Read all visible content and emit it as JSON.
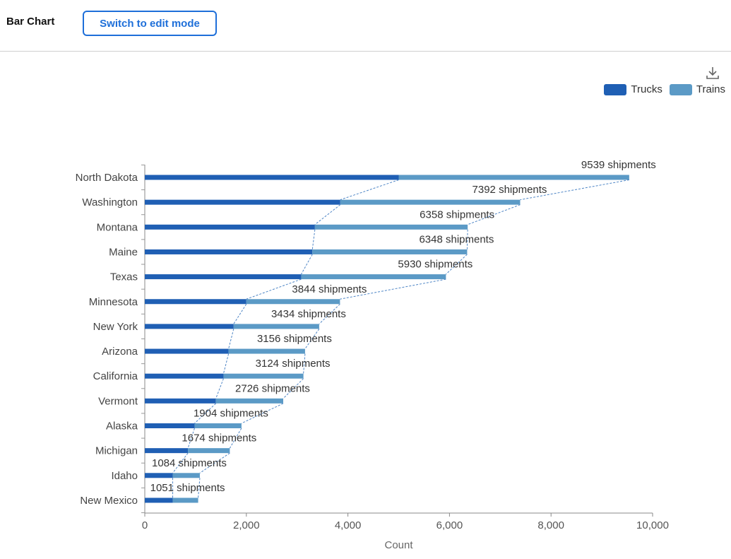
{
  "header": {
    "title": "Bar Chart",
    "edit_button_label": "Switch to edit mode"
  },
  "toolbar": {
    "download_icon": "download-icon"
  },
  "colors": {
    "trucks": "#1f5fb4",
    "trains": "#5b9ac6",
    "connector": "#4f86c6",
    "accent": "#1e6fd9"
  },
  "chart_data": {
    "type": "bar",
    "orientation": "horizontal",
    "stacked": true,
    "title": "",
    "xlabel": "Count",
    "ylabel": "",
    "xlim": [
      0,
      10000
    ],
    "xticks": [
      "0",
      "2,000",
      "4,000",
      "6,000",
      "8,000",
      "10,000"
    ],
    "legend_position": "top-right",
    "grid": false,
    "categories": [
      "North Dakota",
      "Washington",
      "Montana",
      "Maine",
      "Texas",
      "Minnesota",
      "New York",
      "Arizona",
      "California",
      "Vermont",
      "Alaska",
      "Michigan",
      "Idaho",
      "New Mexico"
    ],
    "series": [
      {
        "name": "Trucks",
        "values": [
          5000,
          3850,
          3350,
          3300,
          3080,
          2000,
          1750,
          1650,
          1550,
          1400,
          980,
          850,
          550,
          550
        ]
      },
      {
        "name": "Trains",
        "values": [
          4539,
          3542,
          3008,
          3048,
          2850,
          1844,
          1684,
          1506,
          1574,
          1326,
          924,
          824,
          534,
          501
        ]
      }
    ],
    "totals": [
      9539,
      7392,
      6358,
      6348,
      5930,
      3844,
      3434,
      3156,
      3124,
      2726,
      1904,
      1674,
      1084,
      1051
    ],
    "data_labels": [
      "9539 shipments",
      "7392 shipments",
      "6358 shipments",
      "6348 shipments",
      "5930 shipments",
      "3844 shipments",
      "3434 shipments",
      "3156 shipments",
      "3124 shipments",
      "2726 shipments",
      "1904 shipments",
      "1674 shipments",
      "1084 shipments",
      "1051 shipments"
    ]
  }
}
